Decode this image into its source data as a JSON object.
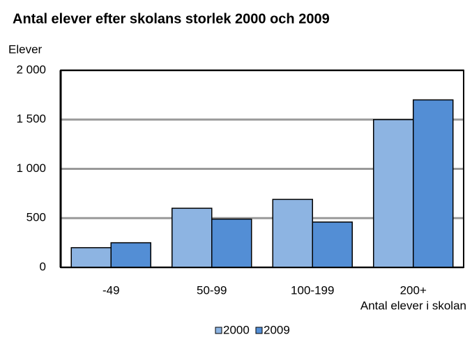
{
  "chart_data": {
    "type": "bar",
    "title": "Antal elever efter skolans storlek 2000 och 2009",
    "y_label": "Elever",
    "x_label": "Antal elever i skolan",
    "categories": [
      "-49",
      "50-99",
      "100-199",
      "200+"
    ],
    "series": [
      {
        "name": "2000",
        "color": "#8db4e2",
        "values": [
          200,
          600,
          690,
          1500
        ]
      },
      {
        "name": "2009",
        "color": "#538ed5",
        "values": [
          250,
          490,
          460,
          1700
        ]
      }
    ],
    "ylim": [
      0,
      2000
    ],
    "yticks": [
      0,
      500,
      {
        "value": 1000,
        "label": "1 000"
      },
      {
        "value": 1500,
        "label": "1 500"
      },
      {
        "value": 2000,
        "label": "2 000"
      }
    ],
    "grid": true,
    "legend": "bottom"
  }
}
